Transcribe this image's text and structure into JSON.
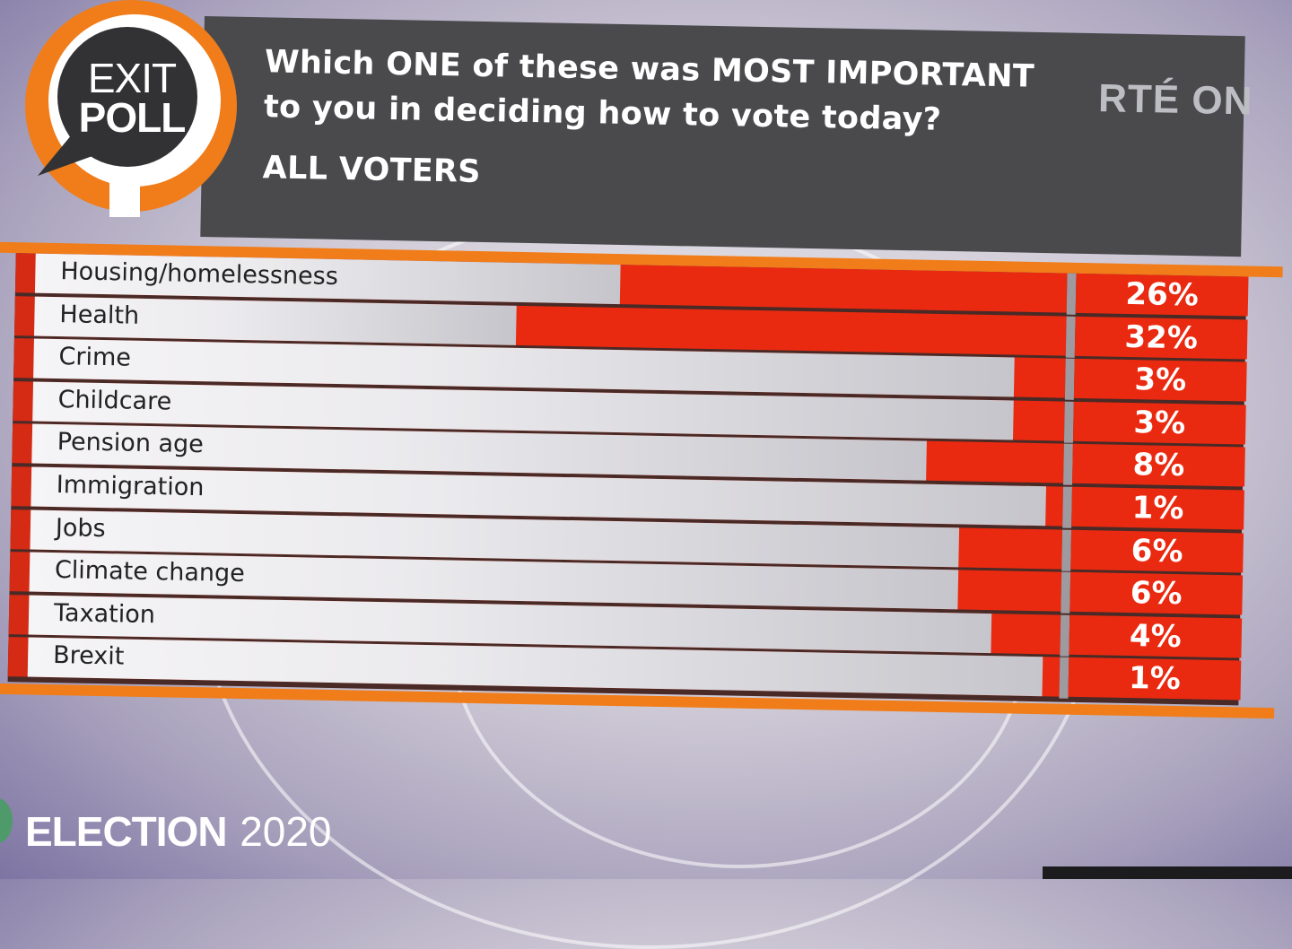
{
  "logo": {
    "line1": "EXIT",
    "line2": "POLL"
  },
  "header": {
    "question_line1": "Which ONE of these was MOST IMPORTANT",
    "question_line2": "to you in deciding how to vote today?",
    "subtitle": "ALL VOTERS",
    "broadcaster": "RTÉ ON"
  },
  "footer": {
    "election_label": "ELECTION",
    "election_year": "2020"
  },
  "colors": {
    "bar_red": "#ea2a10",
    "accent_orange": "#f07d1a",
    "header_grey": "#4a4a4d"
  },
  "chart_data": {
    "type": "bar",
    "orientation": "horizontal",
    "categories": [
      "Housing/homelessness",
      "Health",
      "Crime",
      "Childcare",
      "Pension age",
      "Immigration",
      "Jobs",
      "Climate change",
      "Taxation",
      "Brexit"
    ],
    "values": [
      26,
      32,
      3,
      3,
      8,
      1,
      6,
      6,
      4,
      1
    ],
    "value_labels": [
      "26%",
      "32%",
      "3%",
      "3%",
      "8%",
      "1%",
      "6%",
      "6%",
      "4%",
      "1%"
    ],
    "unit": "%",
    "xlim": [
      0,
      60
    ],
    "grid": false,
    "legend": "none"
  }
}
